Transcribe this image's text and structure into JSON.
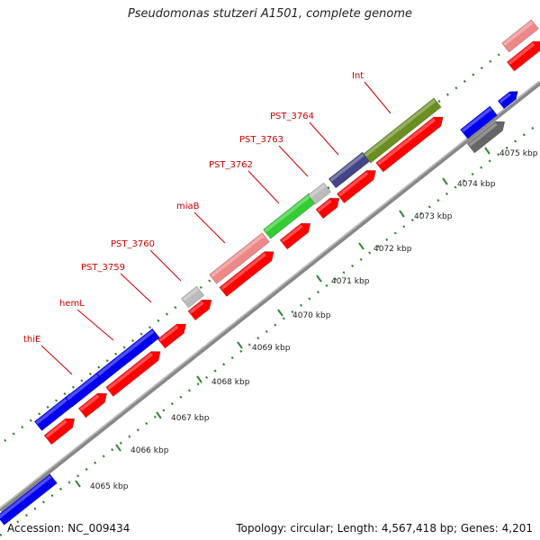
{
  "header": {
    "title": "Pseudomonas stutzeri A1501, complete genome"
  },
  "footer": {
    "accession": "Accession: NC_009434",
    "summary": "Topology: circular; Length: 4,567,418 bp; Genes: 4,201"
  },
  "colors": {
    "red": "#ff0000",
    "blue": "#0000ee",
    "pink": "#ee8888",
    "gray": "#bbbbbb",
    "darkgray": "#666666",
    "green": "#33cc33",
    "navy": "#444488",
    "olive": "#6b8e23",
    "label": "#cc0000",
    "tick": "#338833",
    "backbone": "#888888"
  },
  "ticks": [
    "4065 kbp",
    "4066 kbp",
    "4067 kbp",
    "4068 kbp",
    "4069 kbp",
    "4070 kbp",
    "4071 kbp",
    "4072 kbp",
    "4073 kbp",
    "4074 kbp",
    "4075 kbp"
  ],
  "gene_labels": [
    "thiE",
    "hemL",
    "PST_3759",
    "PST_3760",
    "miaB",
    "PST_3762",
    "PST_3763",
    "PST_3764",
    "Int"
  ]
}
